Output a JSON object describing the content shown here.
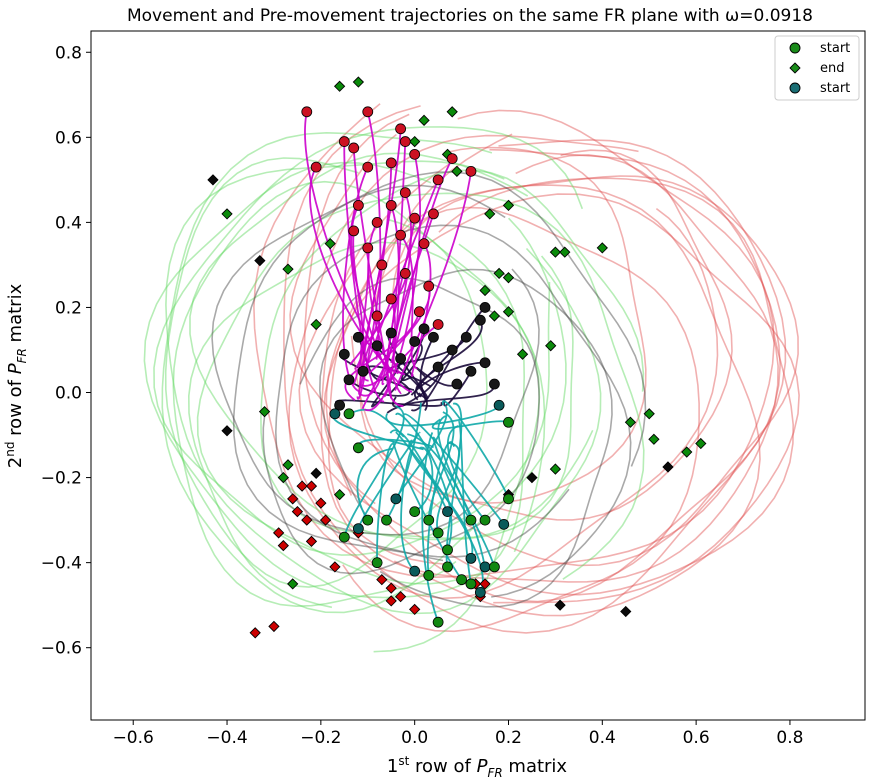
{
  "chart_data": {
    "type": "line",
    "title": "Movement and Pre-movement trajectories on the same FR plane with ω=0.0918",
    "xlabel": {
      "pre": "1",
      "sup": "st",
      "mid": " row of ",
      "var": "P",
      "sub": "FR",
      "post": " matrix"
    },
    "ylabel": {
      "pre": "2",
      "sup": "nd",
      "mid": " row of ",
      "var": "P",
      "sub": "FR",
      "post": " matrix"
    },
    "xlim": [
      -0.69,
      0.96
    ],
    "ylim": [
      -0.77,
      0.85
    ],
    "xticks": [
      -0.6,
      -0.4,
      -0.2,
      0.0,
      0.2,
      0.4,
      0.6,
      0.8
    ],
    "xtick_labels": [
      "−0.6",
      "−0.4",
      "−0.2",
      "0.0",
      "0.2",
      "0.4",
      "0.6",
      "0.8"
    ],
    "yticks": [
      -0.6,
      -0.4,
      -0.2,
      0.0,
      0.2,
      0.4,
      0.6,
      0.8
    ],
    "ytick_labels": [
      "−0.6",
      "−0.4",
      "−0.2",
      "0.0",
      "0.2",
      "0.4",
      "0.6",
      "0.8"
    ],
    "grid": false,
    "legend_position": "top-right",
    "legend": [
      {
        "label": "start",
        "marker": "circle",
        "color": "#1a8c1a"
      },
      {
        "label": "end",
        "marker": "diamond",
        "color": "#1a8c1a"
      },
      {
        "label": "start",
        "marker": "circle",
        "color": "#1a6e74"
      }
    ],
    "colors": {
      "movement_red": "#e05050",
      "movement_green": "#5ed65e",
      "movement_dark": "#404040",
      "premovement_magenta": "#cc00cc",
      "premovement_dark": "#1a0a3a",
      "premovement_teal": "#0fa8a8",
      "start_red": "#cc1122",
      "start_green": "#118811",
      "start_dark": "#181818",
      "start_teal": "#0a5a5a",
      "end_red": "#cc0000",
      "end_green": "#0a8a0a",
      "end_dark": "#0a0a0a"
    },
    "series": [
      {
        "group": "movement",
        "trajectories": [
          {
            "color": "red",
            "cx": 0.26,
            "cy": 0.08,
            "rx": 0.58,
            "ry": 0.66,
            "rot": -10,
            "start": 2.2
          },
          {
            "color": "red",
            "cx": 0.28,
            "cy": 0.1,
            "rx": 0.55,
            "ry": 0.6,
            "rot": 5,
            "start": 2.0
          },
          {
            "color": "red",
            "cx": 0.3,
            "cy": 0.05,
            "rx": 0.52,
            "ry": 0.58,
            "rot": -20,
            "start": 2.4
          },
          {
            "color": "red",
            "cx": 0.22,
            "cy": 0.12,
            "rx": 0.6,
            "ry": 0.62,
            "rot": 15,
            "start": 1.8
          },
          {
            "color": "red",
            "cx": 0.33,
            "cy": 0.04,
            "rx": 0.55,
            "ry": 0.55,
            "rot": -5,
            "start": 2.6
          },
          {
            "color": "red",
            "cx": 0.25,
            "cy": 0.0,
            "rx": 0.5,
            "ry": 0.55,
            "rot": 25,
            "start": 3.6
          },
          {
            "color": "red",
            "cx": 0.2,
            "cy": 0.06,
            "rx": 0.48,
            "ry": 0.6,
            "rot": -30,
            "start": 1.6
          },
          {
            "color": "red",
            "cx": 0.35,
            "cy": 0.1,
            "rx": 0.5,
            "ry": 0.5,
            "rot": 10,
            "start": 2.9
          },
          {
            "color": "red",
            "cx": 0.18,
            "cy": -0.04,
            "rx": 0.45,
            "ry": 0.52,
            "rot": 0,
            "start": 3.9
          },
          {
            "color": "red",
            "cx": 0.3,
            "cy": 0.14,
            "rx": 0.42,
            "ry": 0.5,
            "rot": -15,
            "start": 2.1
          },
          {
            "color": "red",
            "cx": 0.27,
            "cy": -0.02,
            "rx": 0.56,
            "ry": 0.5,
            "rot": 20,
            "start": 4.2
          },
          {
            "color": "red",
            "cx": 0.15,
            "cy": 0.18,
            "rx": 0.4,
            "ry": 0.48,
            "rot": 8,
            "start": 1.9
          },
          {
            "color": "green",
            "cx": -0.12,
            "cy": 0.0,
            "rx": 0.44,
            "ry": 0.55,
            "rot": 15,
            "start": 0.9
          },
          {
            "color": "green",
            "cx": -0.1,
            "cy": 0.05,
            "rx": 0.48,
            "ry": 0.6,
            "rot": -10,
            "start": 1.2
          },
          {
            "color": "green",
            "cx": -0.05,
            "cy": 0.02,
            "rx": 0.5,
            "ry": 0.58,
            "rot": 25,
            "start": 0.6
          },
          {
            "color": "green",
            "cx": -0.15,
            "cy": -0.05,
            "rx": 0.42,
            "ry": 0.55,
            "rot": 5,
            "start": 5.6
          },
          {
            "color": "green",
            "cx": -0.08,
            "cy": 0.1,
            "rx": 0.46,
            "ry": 0.56,
            "rot": -25,
            "start": 1.0
          },
          {
            "color": "green",
            "cx": 0.0,
            "cy": -0.02,
            "rx": 0.5,
            "ry": 0.52,
            "rot": 10,
            "start": 5.2
          },
          {
            "color": "green",
            "cx": -0.12,
            "cy": -0.1,
            "rx": 0.4,
            "ry": 0.5,
            "rot": -5,
            "start": 4.9
          },
          {
            "color": "green",
            "cx": -0.02,
            "cy": 0.08,
            "rx": 0.44,
            "ry": 0.5,
            "rot": 30,
            "start": 0.4
          },
          {
            "color": "green",
            "cx": -0.18,
            "cy": 0.04,
            "rx": 0.38,
            "ry": 0.52,
            "rot": 0,
            "start": 1.4
          },
          {
            "color": "green",
            "cx": 0.05,
            "cy": 0.04,
            "rx": 0.42,
            "ry": 0.48,
            "rot": -18,
            "start": 0.2
          },
          {
            "color": "dark",
            "cx": 0.02,
            "cy": 0.02,
            "rx": 0.46,
            "ry": 0.5,
            "rot": 0,
            "start": 5.9
          },
          {
            "color": "dark",
            "cx": 0.05,
            "cy": -0.04,
            "rx": 0.4,
            "ry": 0.46,
            "rot": 20,
            "start": 4.6
          },
          {
            "color": "dark",
            "cx": -0.06,
            "cy": 0.06,
            "rx": 0.38,
            "ry": 0.44,
            "rot": -12,
            "start": 1.1
          },
          {
            "color": "dark",
            "cx": 0.1,
            "cy": -0.08,
            "rx": 0.34,
            "ry": 0.42,
            "rot": 8,
            "start": 4.0
          },
          {
            "color": "dark",
            "cx": -0.02,
            "cy": -0.06,
            "rx": 0.3,
            "ry": 0.38,
            "rot": -20,
            "start": 3.4
          }
        ]
      }
    ],
    "premovement": {
      "magenta_starts": [
        [
          -0.23,
          0.66
        ],
        [
          -0.1,
          0.66
        ],
        [
          -0.15,
          0.59
        ],
        [
          -0.13,
          0.575
        ],
        [
          -0.03,
          0.62
        ],
        [
          -0.02,
          0.59
        ],
        [
          0.0,
          0.56
        ],
        [
          0.08,
          0.55
        ],
        [
          0.12,
          0.52
        ],
        [
          -0.21,
          0.53
        ],
        [
          -0.05,
          0.54
        ],
        [
          -0.1,
          0.53
        ],
        [
          0.05,
          0.5
        ],
        [
          -0.02,
          0.47
        ],
        [
          -0.05,
          0.44
        ],
        [
          -0.12,
          0.44
        ],
        [
          0.04,
          0.42
        ],
        [
          0.0,
          0.41
        ],
        [
          -0.08,
          0.4
        ],
        [
          -0.13,
          0.38
        ],
        [
          -0.03,
          0.37
        ],
        [
          0.02,
          0.35
        ],
        [
          -0.1,
          0.34
        ],
        [
          -0.07,
          0.3
        ],
        [
          -0.02,
          0.28
        ],
        [
          0.03,
          0.25
        ],
        [
          -0.05,
          0.22
        ],
        [
          0.01,
          0.19
        ],
        [
          -0.08,
          0.18
        ],
        [
          0.05,
          0.16
        ]
      ],
      "dark_starts": [
        [
          -0.15,
          0.09
        ],
        [
          -0.12,
          0.13
        ],
        [
          -0.08,
          0.11
        ],
        [
          -0.05,
          0.14
        ],
        [
          0.0,
          0.12
        ],
        [
          0.04,
          0.13
        ],
        [
          0.08,
          0.1
        ],
        [
          0.11,
          0.13
        ],
        [
          0.14,
          0.17
        ],
        [
          0.15,
          0.2
        ],
        [
          0.12,
          0.05
        ],
        [
          0.15,
          0.07
        ],
        [
          -0.14,
          0.03
        ],
        [
          -0.11,
          0.05
        ],
        [
          0.05,
          0.06
        ],
        [
          -0.03,
          0.08
        ],
        [
          0.02,
          0.15
        ],
        [
          -0.16,
          -0.03
        ],
        [
          0.09,
          0.02
        ],
        [
          0.17,
          0.02
        ]
      ],
      "teal_starts": [
        [
          -0.17,
          -0.05
        ],
        [
          -0.14,
          -0.05
        ],
        [
          -0.12,
          -0.13
        ],
        [
          0.18,
          -0.03
        ],
        [
          0.2,
          -0.07
        ],
        [
          -0.1,
          -0.3
        ],
        [
          -0.12,
          -0.32
        ],
        [
          -0.15,
          -0.34
        ],
        [
          -0.06,
          -0.3
        ],
        [
          -0.04,
          -0.25
        ],
        [
          0.0,
          -0.28
        ],
        [
          0.03,
          -0.3
        ],
        [
          0.07,
          -0.28
        ],
        [
          0.12,
          -0.3
        ],
        [
          0.15,
          -0.3
        ],
        [
          0.19,
          -0.31
        ],
        [
          0.05,
          -0.33
        ],
        [
          -0.08,
          -0.4
        ],
        [
          0.0,
          -0.42
        ],
        [
          0.03,
          -0.43
        ],
        [
          0.07,
          -0.37
        ],
        [
          0.12,
          -0.39
        ],
        [
          0.07,
          -0.41
        ],
        [
          0.1,
          -0.44
        ],
        [
          0.15,
          -0.41
        ],
        [
          0.17,
          -0.41
        ],
        [
          0.12,
          -0.45
        ],
        [
          0.14,
          -0.47
        ],
        [
          0.05,
          -0.54
        ],
        [
          0.2,
          -0.25
        ]
      ]
    },
    "end_points": {
      "red": [
        [
          -0.34,
          -0.565
        ],
        [
          -0.3,
          -0.55
        ],
        [
          -0.29,
          -0.33
        ],
        [
          -0.28,
          -0.36
        ],
        [
          -0.26,
          -0.25
        ],
        [
          -0.25,
          -0.28
        ],
        [
          -0.23,
          -0.3
        ],
        [
          -0.22,
          -0.22
        ],
        [
          -0.24,
          -0.22
        ],
        [
          -0.2,
          -0.26
        ],
        [
          -0.22,
          -0.35
        ],
        [
          -0.19,
          -0.3
        ],
        [
          -0.17,
          -0.41
        ],
        [
          -0.12,
          -0.33
        ],
        [
          -0.07,
          -0.44
        ],
        [
          -0.05,
          -0.46
        ],
        [
          -0.05,
          -0.49
        ],
        [
          -0.03,
          -0.48
        ],
        [
          0.0,
          -0.51
        ],
        [
          0.13,
          -0.45
        ],
        [
          0.15,
          -0.45
        ],
        [
          0.14,
          -0.48
        ]
      ],
      "green": [
        [
          -0.16,
          0.72
        ],
        [
          -0.12,
          0.73
        ],
        [
          0.08,
          0.66
        ],
        [
          0.02,
          0.64
        ],
        [
          0.0,
          0.59
        ],
        [
          0.07,
          0.56
        ],
        [
          0.09,
          0.52
        ],
        [
          -0.27,
          0.29
        ],
        [
          -0.18,
          0.35
        ],
        [
          -0.4,
          0.42
        ],
        [
          0.16,
          0.42
        ],
        [
          0.2,
          0.44
        ],
        [
          0.3,
          0.33
        ],
        [
          0.32,
          0.33
        ],
        [
          0.4,
          0.34
        ],
        [
          0.18,
          0.28
        ],
        [
          0.2,
          0.27
        ],
        [
          0.15,
          0.24
        ],
        [
          0.17,
          0.18
        ],
        [
          0.2,
          0.19
        ],
        [
          0.23,
          0.09
        ],
        [
          0.29,
          0.11
        ],
        [
          0.46,
          -0.07
        ],
        [
          0.5,
          -0.05
        ],
        [
          0.51,
          -0.11
        ],
        [
          0.58,
          -0.14
        ],
        [
          0.61,
          -0.12
        ],
        [
          0.3,
          -0.18
        ],
        [
          -0.32,
          -0.045
        ],
        [
          -0.21,
          0.16
        ],
        [
          -0.28,
          -0.2
        ],
        [
          -0.27,
          -0.17
        ],
        [
          -0.26,
          -0.45
        ],
        [
          -0.16,
          -0.24
        ]
      ],
      "dark": [
        [
          -0.43,
          0.5
        ],
        [
          -0.33,
          0.31
        ],
        [
          -0.4,
          -0.09
        ],
        [
          -0.21,
          -0.19
        ],
        [
          0.54,
          -0.175
        ],
        [
          0.25,
          -0.2
        ],
        [
          0.31,
          -0.5
        ],
        [
          0.45,
          -0.515
        ],
        [
          0.2,
          -0.24
        ]
      ]
    }
  }
}
